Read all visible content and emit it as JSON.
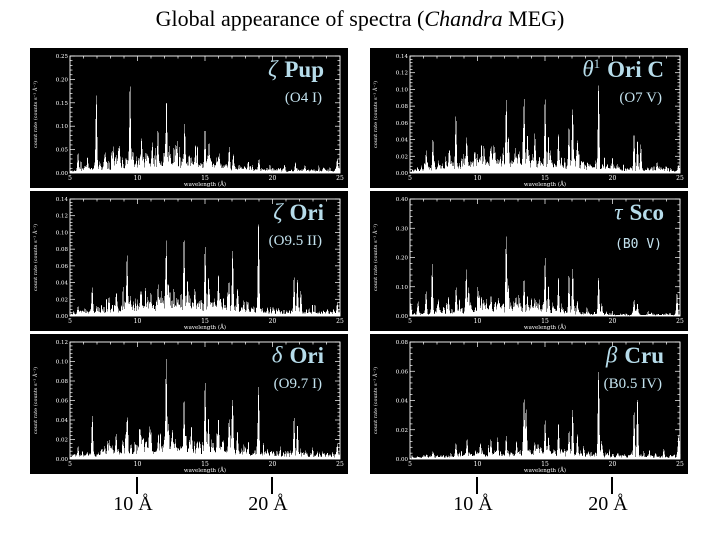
{
  "slide": {
    "title_prefix": "Global appearance of spectra (",
    "title_italic": "Chandra",
    "title_suffix": " MEG)"
  },
  "colors": {
    "panel_background": "#000000",
    "trace": "#ffffff",
    "label_cyan": "#b6dcea",
    "slide_background": "#ffffff",
    "title_text": "#000000"
  },
  "callouts": [
    {
      "label": "10 Å"
    },
    {
      "label": "20 Å"
    },
    {
      "label": "10 Å"
    },
    {
      "label": "20 Å"
    }
  ],
  "chart_data": [
    {
      "type": "line",
      "star": {
        "greek": "ζ",
        "sup": "",
        "name": "Pup",
        "spectral_type": "(O4 I)"
      },
      "xlabel": "wavelength (Å)",
      "ylabel": "count rate (counts s⁻¹ Å⁻¹)",
      "xlim": [
        5,
        25
      ],
      "ylim": [
        0,
        0.25
      ],
      "xticks": [
        5,
        10,
        15,
        20,
        25
      ],
      "yticks": [
        0,
        0.05,
        0.1,
        0.15,
        0.2,
        0.25
      ],
      "seed": 3,
      "floor": [
        [
          5,
          0.008
        ],
        [
          7,
          0.02
        ],
        [
          9,
          0.035
        ],
        [
          13,
          0.04
        ],
        [
          15,
          0.035
        ],
        [
          17,
          0.02
        ],
        [
          19,
          0.012
        ],
        [
          22,
          0.008
        ],
        [
          25,
          0.012
        ]
      ],
      "peaks": [
        [
          5.6,
          0.05
        ],
        [
          6.3,
          0.04
        ],
        [
          6.95,
          0.2
        ],
        [
          7.6,
          0.05
        ],
        [
          8.2,
          0.07
        ],
        [
          8.6,
          0.06
        ],
        [
          9.45,
          0.21
        ],
        [
          10.3,
          0.09
        ],
        [
          11.1,
          0.075
        ],
        [
          11.5,
          0.06
        ],
        [
          12.15,
          0.18
        ],
        [
          12.85,
          0.07
        ],
        [
          13.5,
          0.12
        ],
        [
          14.3,
          0.07
        ],
        [
          15.0,
          0.105
        ],
        [
          15.3,
          0.08
        ],
        [
          16.05,
          0.05
        ],
        [
          16.8,
          0.065
        ],
        [
          17.1,
          0.05
        ],
        [
          18.2,
          0.03
        ],
        [
          19.0,
          0.035
        ],
        [
          20.9,
          0.02
        ],
        [
          21.7,
          0.025
        ],
        [
          22.4,
          0.02
        ],
        [
          24.8,
          0.04
        ]
      ]
    },
    {
      "type": "line",
      "star": {
        "greek": "θ",
        "sup": "1",
        "name": "Ori C",
        "spectral_type": "(O7 V)"
      },
      "xlabel": "wavelength (Å)",
      "ylabel": "count rate (counts s⁻¹ Å⁻¹)",
      "xlim": [
        5,
        25
      ],
      "ylim": [
        0,
        0.14
      ],
      "xticks": [
        5,
        10,
        15,
        20,
        25
      ],
      "yticks": [
        0,
        0.02,
        0.04,
        0.06,
        0.08,
        0.1,
        0.12,
        0.14
      ],
      "seed": 7,
      "floor": [
        [
          5,
          0.004
        ],
        [
          7,
          0.013
        ],
        [
          9,
          0.018
        ],
        [
          11,
          0.023
        ],
        [
          13,
          0.024
        ],
        [
          15,
          0.02
        ],
        [
          17,
          0.017
        ],
        [
          19,
          0.011
        ],
        [
          21,
          0.007
        ],
        [
          25,
          0.006
        ]
      ],
      "peaks": [
        [
          6.2,
          0.03
        ],
        [
          6.7,
          0.046
        ],
        [
          7.9,
          0.03
        ],
        [
          8.4,
          0.085
        ],
        [
          9.2,
          0.05
        ],
        [
          9.8,
          0.03
        ],
        [
          10.3,
          0.042
        ],
        [
          11.0,
          0.035
        ],
        [
          11.3,
          0.03
        ],
        [
          12.13,
          0.108
        ],
        [
          12.3,
          0.05
        ],
        [
          13.45,
          0.11
        ],
        [
          13.7,
          0.055
        ],
        [
          14.25,
          0.055
        ],
        [
          15.01,
          0.102
        ],
        [
          15.26,
          0.05
        ],
        [
          16.0,
          0.056
        ],
        [
          16.78,
          0.06
        ],
        [
          17.05,
          0.1
        ],
        [
          17.4,
          0.05
        ],
        [
          18.97,
          0.13
        ],
        [
          20.0,
          0.02
        ],
        [
          21.6,
          0.055
        ],
        [
          21.85,
          0.045
        ],
        [
          22.1,
          0.038
        ],
        [
          23.3,
          0.015
        ]
      ]
    },
    {
      "type": "line",
      "star": {
        "greek": "ζ",
        "sup": "",
        "name": "Ori",
        "spectral_type": "(O9.5 II)"
      },
      "xlabel": "wavelength (Å)",
      "ylabel": "count rate (counts s⁻¹ Å⁻¹)",
      "xlim": [
        5,
        25
      ],
      "ylim": [
        0,
        0.14
      ],
      "xticks": [
        5,
        10,
        15,
        20,
        25
      ],
      "yticks": [
        0,
        0.02,
        0.04,
        0.06,
        0.08,
        0.1,
        0.12,
        0.14
      ],
      "seed": 11,
      "floor": [
        [
          5,
          0.004
        ],
        [
          7,
          0.011
        ],
        [
          9,
          0.018
        ],
        [
          11,
          0.023
        ],
        [
          13,
          0.024
        ],
        [
          15,
          0.021
        ],
        [
          17,
          0.017
        ],
        [
          19,
          0.011
        ],
        [
          21,
          0.008
        ],
        [
          25,
          0.008
        ]
      ],
      "peaks": [
        [
          5.6,
          0.012
        ],
        [
          6.65,
          0.04
        ],
        [
          7.9,
          0.025
        ],
        [
          8.42,
          0.032
        ],
        [
          9.23,
          0.086
        ],
        [
          10.24,
          0.036
        ],
        [
          11.0,
          0.032
        ],
        [
          11.55,
          0.03
        ],
        [
          12.13,
          0.106
        ],
        [
          12.3,
          0.045
        ],
        [
          13.45,
          0.106
        ],
        [
          13.7,
          0.05
        ],
        [
          14.25,
          0.04
        ],
        [
          15.01,
          0.1
        ],
        [
          15.26,
          0.052
        ],
        [
          16.0,
          0.056
        ],
        [
          16.78,
          0.05
        ],
        [
          17.05,
          0.1
        ],
        [
          17.4,
          0.04
        ],
        [
          18.97,
          0.13
        ],
        [
          21.6,
          0.056
        ],
        [
          21.85,
          0.05
        ],
        [
          22.1,
          0.035
        ],
        [
          24.8,
          0.02
        ]
      ]
    },
    {
      "type": "line",
      "star": {
        "greek": "τ",
        "sup": "",
        "name": "Sco",
        "spectral_type": "(B0 V)"
      },
      "xlabel": "wavelength (Å)",
      "ylabel": "count rate (counts s⁻¹ Å⁻¹)",
      "xlim": [
        5,
        25
      ],
      "ylim": [
        0,
        0.4
      ],
      "xticks": [
        5,
        10,
        15,
        20,
        25
      ],
      "yticks": [
        0,
        0.1,
        0.2,
        0.3,
        0.4
      ],
      "seed": 13,
      "floor": [
        [
          5,
          0.007
        ],
        [
          7,
          0.022
        ],
        [
          9,
          0.032
        ],
        [
          11,
          0.045
        ],
        [
          13,
          0.045
        ],
        [
          15,
          0.035
        ],
        [
          16,
          0.028
        ],
        [
          17,
          0.018
        ],
        [
          19,
          0.011
        ],
        [
          21,
          0.007
        ],
        [
          25,
          0.009
        ]
      ],
      "peaks": [
        [
          5.06,
          0.05
        ],
        [
          5.6,
          0.06
        ],
        [
          6.19,
          0.1
        ],
        [
          6.65,
          0.198
        ],
        [
          7.1,
          0.07
        ],
        [
          7.85,
          0.08
        ],
        [
          8.42,
          0.118
        ],
        [
          9.17,
          0.18
        ],
        [
          9.35,
          0.11
        ],
        [
          10.05,
          0.1
        ],
        [
          10.3,
          0.08
        ],
        [
          11.0,
          0.08
        ],
        [
          11.55,
          0.07
        ],
        [
          12.13,
          0.345
        ],
        [
          12.3,
          0.115
        ],
        [
          12.85,
          0.07
        ],
        [
          13.45,
          0.158
        ],
        [
          13.7,
          0.08
        ],
        [
          14.25,
          0.07
        ],
        [
          15.01,
          0.225
        ],
        [
          15.26,
          0.115
        ],
        [
          16.0,
          0.145
        ],
        [
          16.78,
          0.158
        ],
        [
          17.05,
          0.193
        ],
        [
          17.4,
          0.06
        ],
        [
          18.97,
          0.155
        ],
        [
          19.2,
          0.05
        ],
        [
          21.6,
          0.068
        ],
        [
          21.85,
          0.05
        ],
        [
          24.78,
          0.09
        ]
      ]
    },
    {
      "type": "line",
      "star": {
        "greek": "δ",
        "sup": "",
        "name": "Ori",
        "spectral_type": "(O9.7 I)"
      },
      "xlabel": "wavelength (Å)",
      "ylabel": "count rate (counts s⁻¹ Å⁻¹)",
      "xlim": [
        5,
        25
      ],
      "ylim": [
        0,
        0.12
      ],
      "xticks": [
        5,
        10,
        15,
        20,
        25
      ],
      "yticks": [
        0,
        0.02,
        0.04,
        0.06,
        0.08,
        0.1,
        0.12
      ],
      "seed": 17,
      "floor": [
        [
          5,
          0.003
        ],
        [
          7,
          0.01
        ],
        [
          9,
          0.016
        ],
        [
          11,
          0.021
        ],
        [
          13,
          0.022
        ],
        [
          15,
          0.019
        ],
        [
          17,
          0.015
        ],
        [
          19,
          0.01
        ],
        [
          21,
          0.007
        ],
        [
          25,
          0.006
        ]
      ],
      "peaks": [
        [
          5.6,
          0.015
        ],
        [
          6.65,
          0.053
        ],
        [
          7.9,
          0.022
        ],
        [
          8.42,
          0.033
        ],
        [
          9.23,
          0.053
        ],
        [
          10.24,
          0.036
        ],
        [
          11.0,
          0.03
        ],
        [
          11.55,
          0.028
        ],
        [
          12.13,
          0.115
        ],
        [
          12.3,
          0.04
        ],
        [
          13.45,
          0.07
        ],
        [
          14.0,
          0.04
        ],
        [
          15.01,
          0.09
        ],
        [
          15.26,
          0.05
        ],
        [
          16.0,
          0.05
        ],
        [
          16.78,
          0.046
        ],
        [
          17.05,
          0.075
        ],
        [
          17.4,
          0.035
        ],
        [
          18.97,
          0.09
        ],
        [
          21.6,
          0.05
        ],
        [
          21.85,
          0.042
        ],
        [
          24.8,
          0.018
        ]
      ]
    },
    {
      "type": "line",
      "star": {
        "greek": "β",
        "sup": "",
        "name": "Cru",
        "spectral_type": "(B0.5 IV)"
      },
      "xlabel": "wavelength (Å)",
      "ylabel": "count rate (counts s⁻¹ Å⁻¹)",
      "xlim": [
        5,
        25
      ],
      "ylim": [
        0,
        0.08
      ],
      "xticks": [
        5,
        10,
        15,
        20,
        25
      ],
      "yticks": [
        0,
        0.02,
        0.04,
        0.06,
        0.08
      ],
      "seed": 23,
      "floor": [
        [
          5,
          0.0015
        ],
        [
          8,
          0.003
        ],
        [
          10,
          0.005
        ],
        [
          12,
          0.006
        ],
        [
          14,
          0.007
        ],
        [
          16,
          0.007
        ],
        [
          18,
          0.005
        ],
        [
          20,
          0.0035
        ],
        [
          22,
          0.003
        ],
        [
          25,
          0.003
        ]
      ],
      "peaks": [
        [
          6.7,
          0.006
        ],
        [
          8.4,
          0.012
        ],
        [
          9.23,
          0.016
        ],
        [
          10.2,
          0.012
        ],
        [
          11.0,
          0.016
        ],
        [
          11.5,
          0.018
        ],
        [
          12.13,
          0.019
        ],
        [
          12.9,
          0.014
        ],
        [
          13.45,
          0.049
        ],
        [
          13.6,
          0.04
        ],
        [
          14.25,
          0.013
        ],
        [
          15.01,
          0.03
        ],
        [
          15.26,
          0.019
        ],
        [
          16.0,
          0.027
        ],
        [
          16.78,
          0.021
        ],
        [
          17.05,
          0.039
        ],
        [
          17.4,
          0.02
        ],
        [
          18.97,
          0.07
        ],
        [
          19.2,
          0.015
        ],
        [
          21.6,
          0.039
        ],
        [
          21.85,
          0.049
        ],
        [
          23.8,
          0.008
        ],
        [
          24.9,
          0.02
        ]
      ]
    }
  ]
}
